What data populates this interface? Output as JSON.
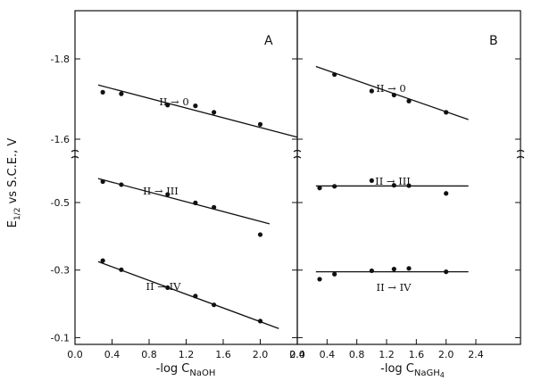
{
  "chart_data": [
    {
      "type": "scatter",
      "panel": "A",
      "xlabel_parts": [
        "-log C",
        "NaOH"
      ],
      "ylabel_parts": [
        "E",
        "1/2",
        " vs  S.C.E., V"
      ],
      "xlim": [
        0.0,
        2.4
      ],
      "x_ticks": [
        "0.0",
        "0.4",
        "0.8",
        "1.2",
        "1.6",
        "2.0",
        "2.4"
      ],
      "y_tick_labels": [
        "-1.8",
        "-1.6",
        "-0.5",
        "-0.3",
        "-0.1"
      ],
      "y_segments": [
        {
          "ylim": [
            -1.56,
            -1.92
          ],
          "ticks": [
            -1.8,
            -1.6
          ]
        },
        {
          "ylim": [
            -0.08,
            -0.64
          ],
          "ticks": [
            -0.5,
            -0.3,
            -0.1
          ]
        }
      ],
      "series": [
        {
          "name": "II → 0",
          "segment": 0,
          "x": [
            0.3,
            0.5,
            1.0,
            1.3,
            1.5,
            2.0
          ],
          "y": [
            -1.717,
            -1.713,
            -1.685,
            -1.683,
            -1.667,
            -1.637
          ],
          "fit": {
            "x": [
              0.25,
              2.4
            ],
            "y": [
              -1.735,
              -1.605
            ]
          }
        },
        {
          "name": "II → III",
          "segment": 1,
          "x": [
            0.3,
            0.5,
            1.0,
            1.3,
            1.5,
            2.0
          ],
          "y": [
            -0.562,
            -0.553,
            -0.524,
            -0.499,
            -0.486,
            -0.405
          ],
          "fit": {
            "x": [
              0.25,
              2.1
            ],
            "y": [
              -0.571,
              -0.437
            ]
          }
        },
        {
          "name": "II → IV",
          "segment": 1,
          "x": [
            0.3,
            0.5,
            1.0,
            1.3,
            1.5,
            2.0
          ],
          "y": [
            -0.328,
            -0.301,
            -0.248,
            -0.223,
            -0.197,
            -0.149
          ],
          "fit": {
            "x": [
              0.25,
              2.2
            ],
            "y": [
              -0.325,
              -0.127
            ]
          }
        }
      ]
    },
    {
      "type": "scatter",
      "panel": "B",
      "xlabel_parts": [
        "-log C",
        "NaGH",
        "4"
      ],
      "xlim": [
        0.0,
        3.0
      ],
      "x_ticks": [
        "0.0",
        "0.4",
        "0.8",
        "1.2",
        "1.6",
        "2.0",
        "2.4"
      ],
      "y_segments": [
        {
          "ylim": [
            -1.56,
            -1.92
          ]
        },
        {
          "ylim": [
            -0.08,
            -0.64
          ]
        }
      ],
      "series": [
        {
          "name": "II → 0",
          "segment": 0,
          "x": [
            0.5,
            1.0,
            1.3,
            1.5,
            2.0
          ],
          "y": [
            -1.761,
            -1.72,
            -1.71,
            -1.695,
            -1.667
          ],
          "fit": {
            "x": [
              0.25,
              2.3
            ],
            "y": [
              -1.781,
              -1.649
            ]
          }
        },
        {
          "name": "II → III",
          "segment": 1,
          "x": [
            0.3,
            0.5,
            1.0,
            1.3,
            1.5,
            2.0
          ],
          "y": [
            -0.543,
            -0.548,
            -0.565,
            -0.551,
            -0.55,
            -0.527
          ],
          "fit": {
            "x": [
              0.25,
              2.3
            ],
            "y": [
              -0.549,
              -0.549
            ]
          }
        },
        {
          "name": "II → IV",
          "segment": 1,
          "x": [
            0.3,
            0.5,
            1.0,
            1.3,
            1.5,
            2.0
          ],
          "y": [
            -0.273,
            -0.288,
            -0.298,
            -0.303,
            -0.305,
            -0.295
          ],
          "fit": {
            "x": [
              0.25,
              2.3
            ],
            "y": [
              -0.295,
              -0.295
            ]
          }
        }
      ]
    }
  ]
}
